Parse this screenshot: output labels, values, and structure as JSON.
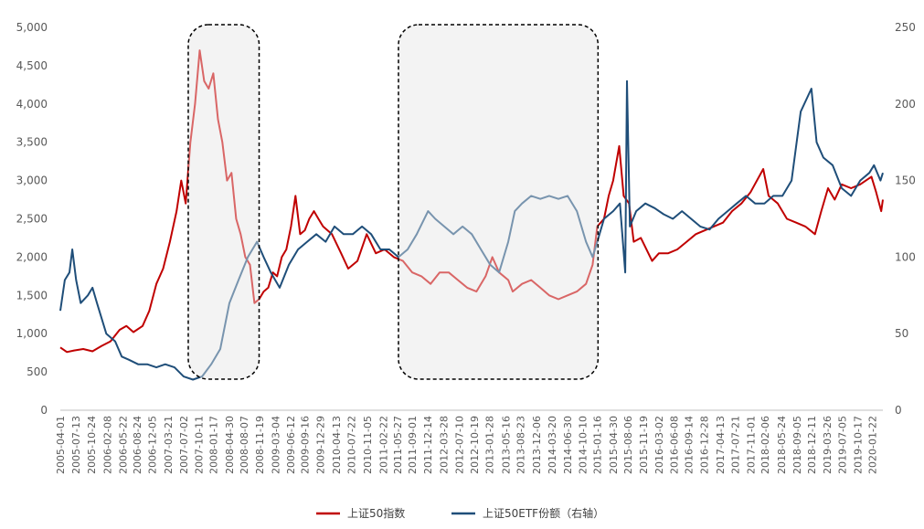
{
  "chart_data": {
    "type": "line",
    "left_axis": {
      "ylim": [
        0,
        5000
      ],
      "ticks": [
        "0",
        "500",
        "1,000",
        "1,500",
        "2,000",
        "2,500",
        "3,000",
        "3,500",
        "4,000",
        "4,500",
        "5,000"
      ]
    },
    "right_axis": {
      "ylim": [
        0,
        250
      ],
      "ticks": [
        "0",
        "50",
        "100",
        "150",
        "200",
        "250"
      ]
    },
    "x_range": [
      "2005-04-01",
      "2020-03-31"
    ],
    "x_tick_labels": [
      "2005-04-01",
      "2005-07-13",
      "2005-10-24",
      "2006-02-08",
      "2006-05-22",
      "2006-08-24",
      "2006-12-05",
      "2007-03-21",
      "2007-07-02",
      "2007-10-11",
      "2008-01-17",
      "2008-04-30",
      "2008-08-07",
      "2008-11-19",
      "2009-03-04",
      "2009-06-12",
      "2009-09-16",
      "2009-12-29",
      "2010-04-13",
      "2010-07-22",
      "2010-11-05",
      "2011-02-22",
      "2011-05-27",
      "2011-09-01",
      "2011-12-14",
      "2012-03-28",
      "2012-07-10",
      "2012-10-19",
      "2013-01-28",
      "2013-05-16",
      "2013-08-23",
      "2013-12-06",
      "2014-03-20",
      "2014-06-30",
      "2014-10-10",
      "2015-01-16",
      "2015-04-30",
      "2015-08-06",
      "2015-11-19",
      "2016-03-02",
      "2016-06-08",
      "2016-09-14",
      "2016-12-28",
      "2017-04-13",
      "2017-07-21",
      "2017-11-01",
      "2018-02-06",
      "2018-05-24",
      "2018-09-05",
      "2018-12-11",
      "2019-03-26",
      "2019-07-05",
      "2019-10-17",
      "2020-01-22"
    ],
    "grid": false,
    "legend_position": "bottom-center",
    "highlight_ranges": [
      {
        "from": "2007-08-01",
        "to": "2008-11-15"
      },
      {
        "from": "2011-06-01",
        "to": "2015-01-20"
      }
    ],
    "series": [
      {
        "name": "上证50指数",
        "axis": "left",
        "color": "#C00000",
        "points": [
          [
            "2005-04-01",
            820
          ],
          [
            "2005-05-15",
            760
          ],
          [
            "2005-07-01",
            780
          ],
          [
            "2005-09-01",
            800
          ],
          [
            "2005-11-01",
            770
          ],
          [
            "2006-01-01",
            840
          ],
          [
            "2006-03-01",
            900
          ],
          [
            "2006-05-01",
            1050
          ],
          [
            "2006-06-15",
            1100
          ],
          [
            "2006-08-01",
            1020
          ],
          [
            "2006-10-01",
            1100
          ],
          [
            "2006-11-15",
            1300
          ],
          [
            "2007-01-01",
            1650
          ],
          [
            "2007-02-15",
            1850
          ],
          [
            "2007-04-01",
            2200
          ],
          [
            "2007-05-15",
            2600
          ],
          [
            "2007-06-15",
            3000
          ],
          [
            "2007-07-15",
            2700
          ],
          [
            "2007-08-15",
            3500
          ],
          [
            "2007-09-15",
            4000
          ],
          [
            "2007-10-16",
            4700
          ],
          [
            "2007-11-15",
            4300
          ],
          [
            "2007-12-15",
            4200
          ],
          [
            "2008-01-15",
            4400
          ],
          [
            "2008-02-15",
            3800
          ],
          [
            "2008-03-15",
            3500
          ],
          [
            "2008-04-15",
            3000
          ],
          [
            "2008-05-15",
            3100
          ],
          [
            "2008-06-15",
            2500
          ],
          [
            "2008-07-15",
            2300
          ],
          [
            "2008-08-15",
            2000
          ],
          [
            "2008-09-15",
            1900
          ],
          [
            "2008-10-15",
            1400
          ],
          [
            "2008-11-15",
            1450
          ],
          [
            "2008-12-15",
            1550
          ],
          [
            "2009-01-15",
            1600
          ],
          [
            "2009-02-15",
            1800
          ],
          [
            "2009-03-15",
            1750
          ],
          [
            "2009-04-15",
            2000
          ],
          [
            "2009-05-15",
            2100
          ],
          [
            "2009-06-15",
            2400
          ],
          [
            "2009-07-15",
            2800
          ],
          [
            "2009-08-15",
            2300
          ],
          [
            "2009-09-15",
            2350
          ],
          [
            "2009-10-15",
            2500
          ],
          [
            "2009-11-15",
            2600
          ],
          [
            "2009-12-15",
            2500
          ],
          [
            "2010-01-15",
            2400
          ],
          [
            "2010-03-15",
            2300
          ],
          [
            "2010-05-15",
            2050
          ],
          [
            "2010-07-01",
            1850
          ],
          [
            "2010-09-01",
            1950
          ],
          [
            "2010-11-01",
            2300
          ],
          [
            "2011-01-01",
            2050
          ],
          [
            "2011-03-01",
            2100
          ],
          [
            "2011-05-01",
            2000
          ],
          [
            "2011-07-01",
            1950
          ],
          [
            "2011-09-01",
            1800
          ],
          [
            "2011-11-01",
            1750
          ],
          [
            "2012-01-01",
            1650
          ],
          [
            "2012-03-01",
            1800
          ],
          [
            "2012-05-01",
            1800
          ],
          [
            "2012-07-01",
            1700
          ],
          [
            "2012-09-01",
            1600
          ],
          [
            "2012-11-01",
            1550
          ],
          [
            "2013-01-01",
            1750
          ],
          [
            "2013-02-15",
            2000
          ],
          [
            "2013-04-01",
            1800
          ],
          [
            "2013-06-01",
            1700
          ],
          [
            "2013-07-01",
            1550
          ],
          [
            "2013-09-01",
            1650
          ],
          [
            "2013-11-01",
            1700
          ],
          [
            "2014-01-01",
            1600
          ],
          [
            "2014-03-01",
            1500
          ],
          [
            "2014-05-01",
            1450
          ],
          [
            "2014-07-01",
            1500
          ],
          [
            "2014-09-01",
            1550
          ],
          [
            "2014-11-01",
            1650
          ],
          [
            "2014-12-15",
            1900
          ],
          [
            "2015-01-15",
            2400
          ],
          [
            "2015-03-01",
            2500
          ],
          [
            "2015-04-01",
            2800
          ],
          [
            "2015-05-01",
            3000
          ],
          [
            "2015-06-10",
            3450
          ],
          [
            "2015-07-10",
            2800
          ],
          [
            "2015-08-15",
            2700
          ],
          [
            "2015-09-15",
            2200
          ],
          [
            "2015-11-01",
            2250
          ],
          [
            "2016-01-15",
            1950
          ],
          [
            "2016-03-01",
            2050
          ],
          [
            "2016-05-01",
            2050
          ],
          [
            "2016-07-01",
            2100
          ],
          [
            "2016-09-01",
            2200
          ],
          [
            "2016-11-01",
            2300
          ],
          [
            "2017-01-01",
            2350
          ],
          [
            "2017-03-01",
            2400
          ],
          [
            "2017-05-01",
            2450
          ],
          [
            "2017-07-01",
            2600
          ],
          [
            "2017-09-01",
            2700
          ],
          [
            "2017-11-01",
            2850
          ],
          [
            "2018-01-24",
            3150
          ],
          [
            "2018-03-01",
            2800
          ],
          [
            "2018-05-01",
            2700
          ],
          [
            "2018-07-01",
            2500
          ],
          [
            "2018-09-01",
            2450
          ],
          [
            "2018-11-01",
            2400
          ],
          [
            "2019-01-04",
            2300
          ],
          [
            "2019-02-15",
            2600
          ],
          [
            "2019-04-01",
            2900
          ],
          [
            "2019-05-15",
            2750
          ],
          [
            "2019-07-01",
            2950
          ],
          [
            "2019-09-01",
            2900
          ],
          [
            "2019-11-01",
            2950
          ],
          [
            "2020-01-15",
            3050
          ],
          [
            "2020-02-15",
            2850
          ],
          [
            "2020-03-20",
            2600
          ],
          [
            "2020-03-31",
            2750
          ]
        ]
      },
      {
        "name": "上证50ETF份额（右轴）",
        "axis": "right",
        "color": "#1F4E79",
        "points": [
          [
            "2005-04-01",
            65
          ],
          [
            "2005-05-01",
            85
          ],
          [
            "2005-06-01",
            90
          ],
          [
            "2005-06-20",
            105
          ],
          [
            "2005-07-15",
            85
          ],
          [
            "2005-08-15",
            70
          ],
          [
            "2005-10-01",
            75
          ],
          [
            "2005-11-01",
            80
          ],
          [
            "2005-12-01",
            70
          ],
          [
            "2006-01-01",
            60
          ],
          [
            "2006-02-01",
            50
          ],
          [
            "2006-04-01",
            45
          ],
          [
            "2006-05-15",
            35
          ],
          [
            "2006-07-01",
            33
          ],
          [
            "2006-09-01",
            30
          ],
          [
            "2006-11-01",
            30
          ],
          [
            "2007-01-01",
            28
          ],
          [
            "2007-03-01",
            30
          ],
          [
            "2007-05-01",
            28
          ],
          [
            "2007-07-01",
            22
          ],
          [
            "2007-09-01",
            20
          ],
          [
            "2007-11-01",
            22
          ],
          [
            "2008-01-01",
            30
          ],
          [
            "2008-03-01",
            40
          ],
          [
            "2008-05-01",
            70
          ],
          [
            "2008-07-01",
            85
          ],
          [
            "2008-09-01",
            100
          ],
          [
            "2008-11-01",
            110
          ],
          [
            "2008-12-15",
            100
          ],
          [
            "2009-02-01",
            90
          ],
          [
            "2009-04-01",
            80
          ],
          [
            "2009-06-01",
            95
          ],
          [
            "2009-08-01",
            105
          ],
          [
            "2009-10-01",
            110
          ],
          [
            "2009-12-01",
            115
          ],
          [
            "2010-02-01",
            110
          ],
          [
            "2010-04-01",
            120
          ],
          [
            "2010-06-01",
            115
          ],
          [
            "2010-08-01",
            115
          ],
          [
            "2010-10-01",
            120
          ],
          [
            "2010-12-01",
            115
          ],
          [
            "2011-02-01",
            105
          ],
          [
            "2011-04-01",
            105
          ],
          [
            "2011-06-01",
            100
          ],
          [
            "2011-08-01",
            105
          ],
          [
            "2011-10-01",
            115
          ],
          [
            "2011-12-15",
            130
          ],
          [
            "2012-02-01",
            125
          ],
          [
            "2012-04-01",
            120
          ],
          [
            "2012-06-01",
            115
          ],
          [
            "2012-08-01",
            120
          ],
          [
            "2012-10-01",
            115
          ],
          [
            "2012-12-01",
            105
          ],
          [
            "2013-02-01",
            95
          ],
          [
            "2013-04-01",
            90
          ],
          [
            "2013-06-01",
            110
          ],
          [
            "2013-07-15",
            130
          ],
          [
            "2013-09-01",
            135
          ],
          [
            "2013-11-01",
            140
          ],
          [
            "2014-01-01",
            138
          ],
          [
            "2014-03-01",
            140
          ],
          [
            "2014-05-01",
            138
          ],
          [
            "2014-07-01",
            140
          ],
          [
            "2014-09-01",
            130
          ],
          [
            "2014-11-01",
            110
          ],
          [
            "2014-12-15",
            100
          ],
          [
            "2015-01-15",
            110
          ],
          [
            "2015-03-01",
            125
          ],
          [
            "2015-05-01",
            130
          ],
          [
            "2015-06-15",
            135
          ],
          [
            "2015-07-20",
            90
          ],
          [
            "2015-08-01",
            215
          ],
          [
            "2015-08-20",
            120
          ],
          [
            "2015-10-01",
            130
          ],
          [
            "2015-12-01",
            135
          ],
          [
            "2016-02-01",
            132
          ],
          [
            "2016-04-01",
            128
          ],
          [
            "2016-06-01",
            125
          ],
          [
            "2016-08-01",
            130
          ],
          [
            "2016-10-01",
            125
          ],
          [
            "2016-12-01",
            120
          ],
          [
            "2017-02-01",
            118
          ],
          [
            "2017-04-01",
            125
          ],
          [
            "2017-06-01",
            130
          ],
          [
            "2017-08-01",
            135
          ],
          [
            "2017-10-01",
            140
          ],
          [
            "2017-12-01",
            135
          ],
          [
            "2018-02-01",
            135
          ],
          [
            "2018-04-01",
            140
          ],
          [
            "2018-06-01",
            140
          ],
          [
            "2018-08-01",
            150
          ],
          [
            "2018-10-01",
            195
          ],
          [
            "2018-12-11",
            210
          ],
          [
            "2019-01-15",
            175
          ],
          [
            "2019-03-01",
            165
          ],
          [
            "2019-05-01",
            160
          ],
          [
            "2019-07-01",
            145
          ],
          [
            "2019-09-01",
            140
          ],
          [
            "2019-11-01",
            150
          ],
          [
            "2020-01-01",
            155
          ],
          [
            "2020-02-01",
            160
          ],
          [
            "2020-03-15",
            150
          ],
          [
            "2020-03-31",
            155
          ]
        ]
      }
    ]
  }
}
